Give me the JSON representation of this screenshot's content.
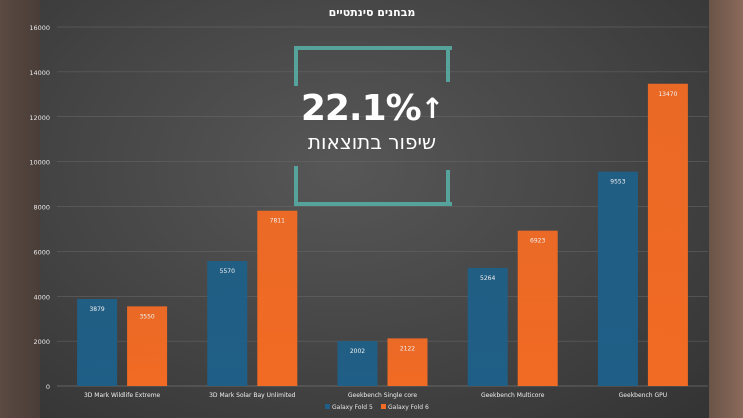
{
  "chart_data": {
    "type": "bar",
    "title": "מבחנים סינתטיים",
    "categories": [
      "3D Mark Wildlife Extreme",
      "3D Mark Solar Bay Unlimited",
      "Geekbench Single core",
      "Geekbench Multicore",
      "Geekbench GPU"
    ],
    "series": [
      {
        "name": "Galaxy Fold 5",
        "values": [
          3879,
          5570,
          2002,
          5264,
          9553
        ],
        "color": "#1f5f87"
      },
      {
        "name": "Galaxy Fold 6",
        "values": [
          3550,
          7811,
          2122,
          6923,
          13470
        ],
        "color": "#f26b24"
      }
    ],
    "yticks": [
      0,
      2000,
      4000,
      6000,
      8000,
      10000,
      12000,
      14000,
      16000
    ],
    "ylim": [
      0,
      16000
    ],
    "legend_position": "bottom",
    "grid": true
  },
  "highlight": {
    "value": "22.1%",
    "arrow": "↑",
    "caption": "שיפור בתוצאות",
    "frame_color": "#55a39b"
  }
}
